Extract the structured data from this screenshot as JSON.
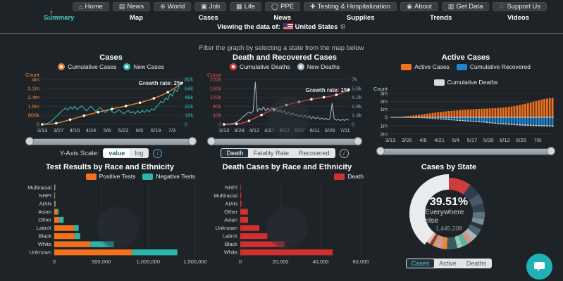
{
  "icons": {
    "home": "⌂",
    "news": "▤",
    "world": "⊕",
    "job": "▣",
    "life": "▦",
    "ppe": "◯",
    "testing": "✚",
    "about": "◉",
    "data": "▥",
    "support": "♡",
    "arrow_up": "↑",
    "gear": "⚙",
    "info": "i"
  },
  "nav": {
    "items": [
      {
        "label": "Home",
        "icon": "home"
      },
      {
        "label": "News",
        "icon": "news"
      },
      {
        "label": "World",
        "icon": "world"
      },
      {
        "label": "Job",
        "icon": "job"
      },
      {
        "label": "Life",
        "icon": "life"
      },
      {
        "label": "PPE",
        "icon": "ppe"
      },
      {
        "label": "Testing & Hospitalization",
        "icon": "testing"
      },
      {
        "label": "About",
        "icon": "about"
      },
      {
        "label": "Get Data",
        "icon": "data"
      },
      {
        "label": "Support Us",
        "icon": "support"
      }
    ]
  },
  "subnav": {
    "items": [
      "Summary",
      "Map",
      "Cases",
      "News",
      "Supplies",
      "Trends",
      "Videos"
    ],
    "active": "Summary"
  },
  "viewing": {
    "prefix": "Viewing the data of:",
    "country": "United States"
  },
  "filter_hint": "Filter the graph by selecting a state from the map below",
  "controls": {
    "yaxis": {
      "label": "Y-Axis Scale:",
      "options": [
        "value",
        "log"
      ],
      "active": "value"
    },
    "death_view": {
      "options": [
        "Death",
        "Fatality Rate",
        "Recovered"
      ],
      "active": "Death"
    },
    "state_view": {
      "options": [
        "Cases",
        "Active",
        "Deaths"
      ],
      "active": "Cases"
    }
  },
  "chart_data": [
    {
      "type": "line",
      "title": "Cases",
      "annotation": "Growth rate: 2%",
      "legend": [
        {
          "name": "Cumulative Cases",
          "color": "#e8833a"
        },
        {
          "name": "New Cases",
          "color": "#35c2ba"
        }
      ],
      "left_axis": {
        "label": "Count",
        "color": "#ef8b3f",
        "ticks": [
          "4m",
          "3.2m",
          "2.4m",
          "1.6m",
          "800k",
          "0"
        ],
        "max": 4
      },
      "right_axis": {
        "color": "#35c2ba",
        "ticks": [
          "80k",
          "64k",
          "48k",
          "32k",
          "16k",
          "0"
        ],
        "max": 80
      },
      "x_ticks": [
        "3/13",
        "3/27",
        "4/10",
        "4/24",
        "5/8",
        "5/22",
        "6/5",
        "6/19",
        "7/3"
      ],
      "series": [
        {
          "name": "Cumulative Cases",
          "axis": "left",
          "color": "#e8833a",
          "markers": true,
          "values": [
            0.002,
            0.004,
            0.008,
            0.015,
            0.03,
            0.06,
            0.1,
            0.14,
            0.19,
            0.24,
            0.3,
            0.36,
            0.42,
            0.48,
            0.54,
            0.6,
            0.66,
            0.71,
            0.77,
            0.82,
            0.88,
            0.93,
            0.98,
            1.03,
            1.08,
            1.13,
            1.18,
            1.23,
            1.28,
            1.32,
            1.37,
            1.41,
            1.46,
            1.5,
            1.55,
            1.59,
            1.64,
            1.68,
            1.73,
            1.78,
            1.83,
            1.88,
            1.93,
            1.99,
            2.05,
            2.11,
            2.17,
            2.24,
            2.31,
            2.39,
            2.47,
            2.56,
            2.65,
            2.75,
            2.86,
            2.98,
            3.1,
            3.23,
            3.37,
            3.52,
            3.68
          ]
        },
        {
          "name": "New Cases",
          "axis": "right",
          "color": "#35c2ba",
          "markers": false,
          "values": [
            0.3,
            0.8,
            1.5,
            3,
            6,
            10,
            14,
            18,
            22,
            26,
            29,
            25,
            31,
            27,
            32,
            26,
            30,
            33,
            28,
            24,
            29,
            32,
            27,
            23,
            27,
            30,
            25,
            21,
            24,
            27,
            23,
            20,
            23,
            26,
            22,
            19,
            22,
            25,
            20,
            23,
            19,
            24,
            20,
            25,
            21,
            26,
            22,
            28,
            25,
            31,
            35,
            41,
            38,
            47,
            44,
            55,
            50,
            62,
            58,
            70,
            76
          ]
        }
      ]
    },
    {
      "type": "line",
      "title": "Death and Recovered Cases",
      "annotation": "Growth rate: 1%",
      "legend": [
        {
          "name": "Cumulative Deaths",
          "color": "#d64541"
        },
        {
          "name": "New Deaths",
          "color": "#aebecb"
        }
      ],
      "left_axis": {
        "label": "Count",
        "color": "#e25252",
        "ticks": [
          "200k",
          "160k",
          "120k",
          "80k",
          "40k",
          "0"
        ],
        "max": 200
      },
      "right_axis": {
        "color": "#9aa5ad",
        "ticks": [
          "7k",
          "5.6k",
          "4.2k",
          "2.8k",
          "1.4k",
          "0"
        ],
        "max": 7
      },
      "x_ticks": [
        "3/13",
        "3/28",
        "4/12",
        "4/27",
        "5/12",
        "5/27",
        "6/11",
        "6/26",
        "7/11"
      ],
      "series": [
        {
          "name": "Cumulative Deaths",
          "axis": "left",
          "color": "#d64541",
          "markers": true,
          "values": [
            0.05,
            0.1,
            0.2,
            0.35,
            0.6,
            1,
            1.8,
            3,
            4.5,
            6.5,
            9,
            12,
            15.5,
            19.5,
            24,
            28.5,
            33,
            37.5,
            42,
            46.5,
            51,
            55,
            59,
            63,
            66.5,
            70,
            73.5,
            77,
            80,
            83,
            86,
            88.5,
            91,
            93.5,
            96,
            98,
            100,
            102,
            104,
            106,
            108,
            110,
            111.5,
            113,
            114.5,
            116,
            117.5,
            119,
            120.5,
            122,
            123.5,
            125,
            127,
            129,
            131.5,
            134,
            137,
            140.5,
            144.5,
            149,
            154
          ]
        },
        {
          "name": "New Deaths",
          "axis": "right",
          "color": "#aebecb",
          "markers": false,
          "values": [
            0.01,
            0.02,
            0.04,
            0.07,
            0.12,
            0.2,
            0.35,
            0.55,
            0.8,
            1.1,
            1.4,
            1.7,
            1.9,
            1.7,
            2.1,
            6.6,
            2.0,
            2.5,
            2.2,
            2.7,
            2.1,
            2.5,
            2.2,
            2.6,
            2.0,
            2.4,
            1.9,
            2.3,
            1.8,
            2.1,
            1.6,
            1.9,
            1.5,
            1.8,
            1.4,
            1.6,
            1.2,
            1.5,
            1.1,
            1.4,
            1.0,
            1.3,
            0.9,
            1.2,
            0.85,
            1.1,
            0.8,
            1.0,
            0.75,
            0.95,
            0.7,
            0.9,
            3.3,
            0.85,
            0.65,
            0.8,
            0.6,
            0.75,
            0.6,
            0.8,
            0.65
          ]
        }
      ]
    },
    {
      "type": "bar-mirror",
      "title": "Active Cases",
      "legend": [
        {
          "name": "Active Cases",
          "color": "#f2711c"
        },
        {
          "name": "Cumulative Recovered",
          "color": "#2185d0"
        },
        {
          "name": "Cumulative Deaths",
          "color": "#d8dcdf"
        }
      ],
      "axis": {
        "label": "Count",
        "color": "#c8d0d4",
        "pos_ticks": [
          "3m",
          "2m",
          "1m",
          "0"
        ],
        "neg_ticks": [
          "1m",
          "2m"
        ],
        "pos_max": 3,
        "neg_max": 2
      },
      "x_ticks": [
        "3/13",
        "3/26",
        "4/8",
        "4/21",
        "5/4",
        "5/17",
        "5/30",
        "6/12",
        "6/25",
        "7/8"
      ],
      "active": [
        0.01,
        0.02,
        0.04,
        0.06,
        0.09,
        0.12,
        0.16,
        0.2,
        0.24,
        0.28,
        0.32,
        0.36,
        0.41,
        0.46,
        0.5,
        0.55,
        0.6,
        0.64,
        0.68,
        0.72,
        0.76,
        0.79,
        0.82,
        0.85,
        0.88,
        0.9,
        0.93,
        0.95,
        0.98,
        1.0,
        1.02,
        1.04,
        1.05,
        1.07,
        1.08,
        1.1,
        1.12,
        1.13,
        1.15,
        1.18,
        1.2,
        1.23,
        1.27,
        1.31,
        1.36,
        1.42,
        1.48,
        1.55,
        1.62,
        1.7,
        1.78,
        1.87,
        1.96,
        2.05,
        2.14,
        2.22,
        2.3,
        2.36,
        2.42,
        2.45
      ],
      "recovered": [
        0,
        0,
        0,
        0,
        0.005,
        0.01,
        0.015,
        0.02,
        0.03,
        0.04,
        0.05,
        0.06,
        0.07,
        0.09,
        0.1,
        0.12,
        0.14,
        0.16,
        0.18,
        0.2,
        0.22,
        0.24,
        0.26,
        0.28,
        0.3,
        0.32,
        0.34,
        0.36,
        0.38,
        0.4,
        0.42,
        0.44,
        0.46,
        0.48,
        0.5,
        0.54,
        0.57,
        0.6,
        0.63,
        0.66,
        0.68,
        0.7,
        0.72,
        0.74,
        0.76,
        0.78,
        0.8,
        0.82,
        0.84,
        0.86,
        0.87,
        0.88,
        0.89,
        0.9,
        0.91,
        0.92,
        0.93,
        0.94,
        0.95,
        0.96
      ],
      "deaths": [
        0,
        0,
        0,
        0.002,
        0.004,
        0.006,
        0.01,
        0.014,
        0.018,
        0.024,
        0.03,
        0.036,
        0.042,
        0.048,
        0.054,
        0.06,
        0.065,
        0.07,
        0.075,
        0.08,
        0.084,
        0.088,
        0.091,
        0.094,
        0.097,
        0.1,
        0.102,
        0.105,
        0.107,
        0.109,
        0.111,
        0.113,
        0.115,
        0.116,
        0.118,
        0.119,
        0.121,
        0.122,
        0.124,
        0.125,
        0.126,
        0.128,
        0.129,
        0.13,
        0.131,
        0.132,
        0.133,
        0.134,
        0.135,
        0.136,
        0.137,
        0.138,
        0.139,
        0.14,
        0.141,
        0.142,
        0.143,
        0.144,
        0.145,
        0.146
      ]
    },
    {
      "type": "hbar-stacked",
      "title": "Test Results by Race and Ethnicity",
      "legend": [
        {
          "name": "Positive Tests",
          "color": "#f2711c"
        },
        {
          "name": "Negative Tests",
          "color": "#2cb5ad"
        }
      ],
      "categories": [
        "Multiracial",
        "NHPI",
        "AIAN",
        "Asian",
        "Other",
        "LatinX",
        "Black",
        "White",
        "Unknown"
      ],
      "series": [
        {
          "name": "Positive Tests",
          "color": "#f2711c",
          "values": [
            8000,
            4000,
            10000,
            32000,
            55000,
            210000,
            220000,
            385000,
            830000
          ]
        },
        {
          "name": "Negative Tests",
          "color": "#2cb5ad",
          "values": [
            3000,
            2000,
            5000,
            14000,
            45000,
            50000,
            55000,
            250000,
            480000
          ]
        }
      ],
      "x_ticks": [
        "0",
        "500,000",
        "1,000,000",
        "1,500,000"
      ],
      "x_max": 1500000
    },
    {
      "type": "hbar",
      "title": "Death Cases by Race and Ethnicity",
      "legend": [
        {
          "name": "Death",
          "color": "#cf3030"
        }
      ],
      "categories": [
        "NHPI",
        "Multiracial",
        "AIAN",
        "Other",
        "Asian",
        "Unknown",
        "LatinX",
        "Black",
        "White"
      ],
      "series": [
        {
          "name": "Death",
          "color": "#cf3030",
          "values": [
            250,
            450,
            600,
            3800,
            3900,
            9500,
            13500,
            22000,
            46000
          ]
        }
      ],
      "x_ticks": [
        "0",
        "20,000",
        "40,000",
        "60,000"
      ],
      "x_max": 60000
    },
    {
      "type": "donut",
      "title": "Cases by State",
      "center": {
        "percent": "39.51%",
        "label": "Everywhere else",
        "value": "1,445,208"
      },
      "segments": [
        {
          "pct": 10.2,
          "color": "#cf3e3e"
        },
        {
          "pct": 5.6,
          "color": "#2e3e4e"
        },
        {
          "pct": 4.4,
          "color": "#47596b"
        },
        {
          "pct": 4.1,
          "color": "#33424e"
        },
        {
          "pct": 3.4,
          "color": "#5e7180"
        },
        {
          "pct": 2.5,
          "color": "#76909c"
        },
        {
          "pct": 2.2,
          "color": "#2a3844"
        },
        {
          "pct": 3.3,
          "color": "#53626e"
        },
        {
          "pct": 2.8,
          "color": "#a3b8bf"
        },
        {
          "pct": 2.4,
          "color": "#e0907f"
        },
        {
          "pct": 2.9,
          "color": "#56b6a4"
        },
        {
          "pct": 2.3,
          "color": "#9fc6b2"
        },
        {
          "pct": 2.0,
          "color": "#2a6661"
        },
        {
          "pct": 2.8,
          "color": "#44565f"
        },
        {
          "pct": 2.6,
          "color": "#e8893a"
        },
        {
          "pct": 2.0,
          "color": "#d096a1"
        },
        {
          "pct": 1.9,
          "color": "#c7a169"
        },
        {
          "pct": 1.6,
          "color": "#8e3c3c"
        },
        {
          "pct": 1.5,
          "color": "#e5b9a8"
        },
        {
          "pct": 39.51,
          "color": "#e9ebed"
        }
      ]
    }
  ]
}
